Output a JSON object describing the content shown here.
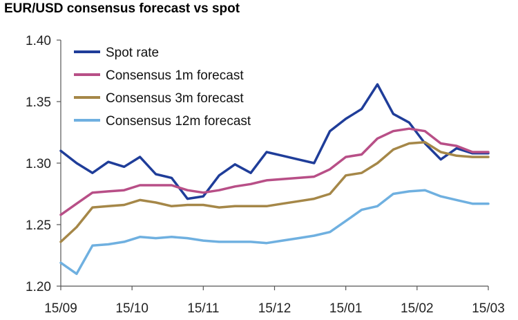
{
  "title": "EUR/USD consensus forecast vs spot",
  "chart_data": {
    "type": "line",
    "title": "EUR/USD consensus forecast vs spot",
    "xlabel": "",
    "ylabel": "",
    "ylim": [
      1.2,
      1.4
    ],
    "yticks": [
      "1.20",
      "1.25",
      "1.30",
      "1.35",
      "1.40"
    ],
    "xtick_labels": [
      "15/09",
      "15/10",
      "15/11",
      "15/12",
      "15/01",
      "15/02",
      "15/03"
    ],
    "grid": false,
    "legend_position": "top-left",
    "x": [
      0,
      1,
      2,
      3,
      4,
      5,
      6,
      7,
      8,
      9,
      10,
      11,
      12,
      13,
      14,
      15,
      16,
      17,
      18,
      19,
      20,
      21,
      22,
      23,
      24,
      25,
      26,
      27
    ],
    "series": [
      {
        "name": "Spot rate",
        "color": "#1f3d99",
        "values": [
          1.31,
          1.3,
          1.292,
          1.301,
          1.297,
          1.305,
          1.291,
          1.288,
          1.271,
          1.273,
          1.29,
          1.299,
          1.292,
          1.309,
          1.306,
          1.303,
          1.3,
          1.326,
          1.336,
          1.344,
          1.364,
          1.34,
          1.333,
          1.316,
          1.303,
          1.312,
          1.308,
          1.308
        ]
      },
      {
        "name": "Consensus 1m forecast",
        "color": "#b84f87",
        "values": [
          1.258,
          1.267,
          1.276,
          1.277,
          1.278,
          1.282,
          1.282,
          1.282,
          1.278,
          1.276,
          1.278,
          1.281,
          1.283,
          1.286,
          1.287,
          1.288,
          1.289,
          1.295,
          1.305,
          1.307,
          1.32,
          1.326,
          1.328,
          1.326,
          1.316,
          1.314,
          1.309,
          1.309
        ]
      },
      {
        "name": "Consensus 3m forecast",
        "color": "#a58748",
        "values": [
          1.236,
          1.248,
          1.264,
          1.265,
          1.266,
          1.27,
          1.268,
          1.265,
          1.266,
          1.266,
          1.264,
          1.265,
          1.265,
          1.265,
          1.267,
          1.269,
          1.271,
          1.275,
          1.29,
          1.292,
          1.3,
          1.311,
          1.316,
          1.317,
          1.309,
          1.306,
          1.305,
          1.305
        ]
      },
      {
        "name": "Consensus 12m forecast",
        "color": "#6fb0e0",
        "values": [
          1.219,
          1.21,
          1.233,
          1.234,
          1.236,
          1.24,
          1.239,
          1.24,
          1.239,
          1.237,
          1.236,
          1.236,
          1.236,
          1.235,
          1.237,
          1.239,
          1.241,
          1.244,
          1.253,
          1.262,
          1.265,
          1.275,
          1.277,
          1.278,
          1.273,
          1.27,
          1.267,
          1.267
        ]
      }
    ]
  }
}
